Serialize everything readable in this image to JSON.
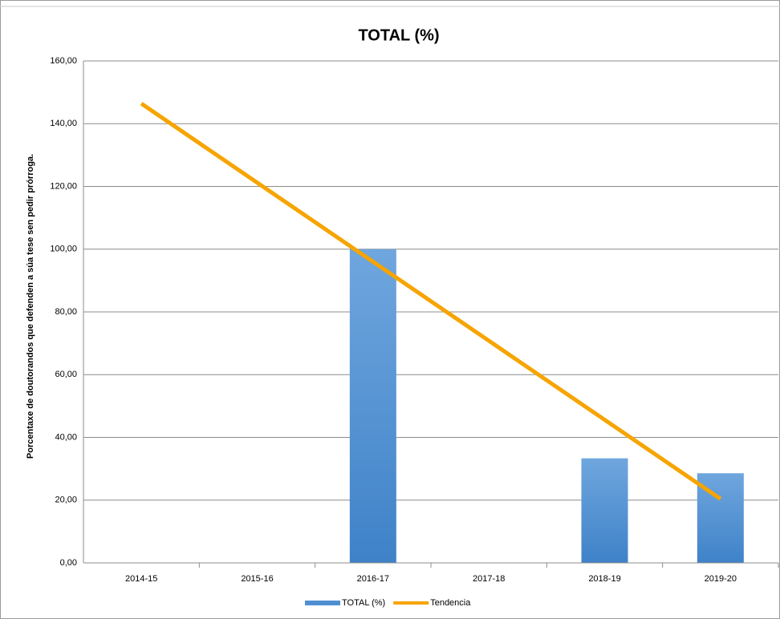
{
  "chart_data": {
    "type": "bar",
    "title": "TOTAL (%)",
    "y_label": "Porcentaxe de doutorandos que defenden a súa tese sen pedir prórroga.",
    "categories": [
      "2014-15",
      "2015-16",
      "2016-17",
      "2017-18",
      "2018-19",
      "2019-20"
    ],
    "series": [
      {
        "name": "TOTAL (%)",
        "type": "bar",
        "color": "#4f8fd1",
        "values": [
          null,
          null,
          100,
          null,
          33.33,
          28.57
        ]
      },
      {
        "name": "Tendencia",
        "type": "line",
        "color": "#f7a400",
        "values": [
          146.4,
          121.2,
          96.0,
          70.8,
          45.6,
          20.4
        ]
      }
    ],
    "ylim": [
      0,
      160
    ],
    "yticks": [
      {
        "value": 0,
        "label": "0,00"
      },
      {
        "value": 20,
        "label": "20,00"
      },
      {
        "value": 40,
        "label": "40,00"
      },
      {
        "value": 60,
        "label": "60,00"
      },
      {
        "value": 80,
        "label": "80,00"
      },
      {
        "value": 100,
        "label": "100,00"
      },
      {
        "value": 120,
        "label": "120,00"
      },
      {
        "value": 140,
        "label": "140,00"
      },
      {
        "value": 160,
        "label": "160,00"
      }
    ],
    "grid": true,
    "legend": "bottom"
  }
}
